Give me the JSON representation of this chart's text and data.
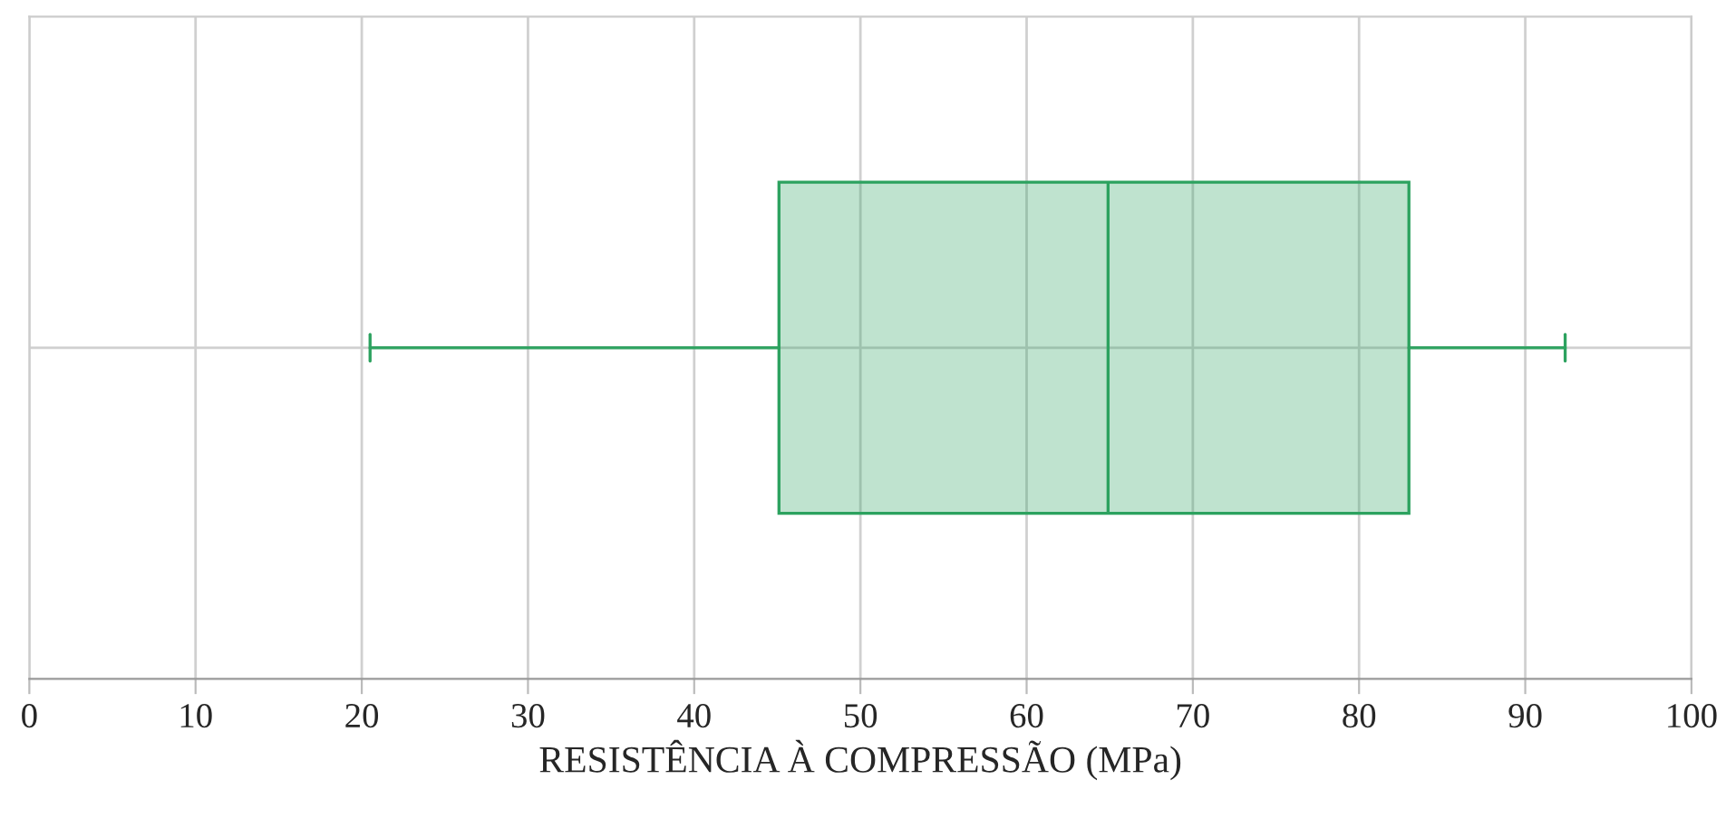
{
  "chart_data": {
    "type": "box",
    "orientation": "horizontal",
    "xlabel": "RESISTÊNCIA À COMPRESSÃO (MPa)",
    "categories": [
      null
    ],
    "series": [
      {
        "color": "#2ca25f",
        "boxes": [
          {
            "low": 20.5,
            "q1": 45.1,
            "median": 64.9,
            "q3": 83.0,
            "high": 92.4
          }
        ]
      }
    ],
    "xlim": [
      0,
      100
    ],
    "xticks": [
      0,
      10,
      20,
      30,
      40,
      50,
      60,
      70,
      80,
      90,
      100
    ],
    "grid": true
  }
}
